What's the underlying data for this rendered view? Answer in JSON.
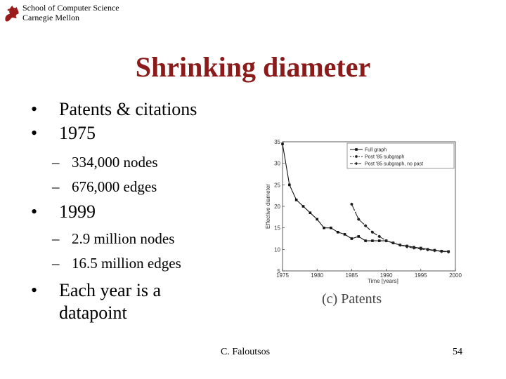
{
  "header": {
    "line1": "School of Computer Science",
    "line2": "Carnegie Mellon"
  },
  "title": "Shrinking diameter",
  "bullets": [
    {
      "text": "Patents & citations"
    },
    {
      "text": "1975",
      "subs": [
        "334,000 nodes",
        "676,000 edges"
      ]
    },
    {
      "text": "1999",
      "subs": [
        "2.9 million nodes",
        "16.5 million edges"
      ]
    },
    {
      "text": "Each year is a",
      "text2": "datapoint"
    }
  ],
  "footer": {
    "author": "C. Faloutsos",
    "page": "54"
  },
  "chart_data": {
    "type": "line",
    "title": "",
    "caption": "(c) Patents",
    "xlabel": "Time [years]",
    "ylabel": "Effective diameter",
    "xlim": [
      1975,
      2000
    ],
    "ylim": [
      5,
      35
    ],
    "xticks": [
      1975,
      1980,
      1985,
      1990,
      1995,
      2000
    ],
    "yticks": [
      5,
      10,
      15,
      20,
      25,
      30,
      35
    ],
    "legend_position": "top-right",
    "series": [
      {
        "name": "Full graph",
        "marker": "square",
        "x": [
          1975,
          1976,
          1977,
          1978,
          1979,
          1980,
          1981,
          1982,
          1983,
          1984,
          1985,
          1986,
          1987,
          1988,
          1989,
          1990,
          1991,
          1992,
          1993,
          1994,
          1995,
          1996,
          1997,
          1998,
          1999
        ],
        "y": [
          34.5,
          25,
          21.5,
          20,
          18.5,
          17,
          15,
          15,
          14,
          13.5,
          12.5,
          13,
          12,
          12,
          12,
          12,
          11.5,
          11,
          10.8,
          10.5,
          10.3,
          10,
          9.8,
          9.6,
          9.5
        ]
      },
      {
        "name": "Post '85 subgraph",
        "marker": "circle",
        "x": [
          1985,
          1986,
          1987,
          1988,
          1989,
          1990,
          1991,
          1992,
          1993,
          1994,
          1995,
          1996,
          1997,
          1998,
          1999
        ],
        "y": [
          20.5,
          17,
          15.5,
          14,
          13,
          12,
          11.5,
          11,
          10.7,
          10.5,
          10.3,
          10,
          9.8,
          9.6,
          9.5
        ]
      },
      {
        "name": "Post '85 subgraph, no past",
        "marker": "diamond",
        "x": [
          1985,
          1986,
          1987,
          1988,
          1989,
          1990,
          1991,
          1992,
          1993,
          1994,
          1995,
          1996,
          1997,
          1998,
          1999
        ],
        "y": [
          20.5,
          17,
          15.5,
          14,
          13,
          12,
          11.5,
          11,
          10.6,
          10.3,
          10.1,
          9.9,
          9.7,
          9.5,
          9.4
        ]
      }
    ]
  }
}
